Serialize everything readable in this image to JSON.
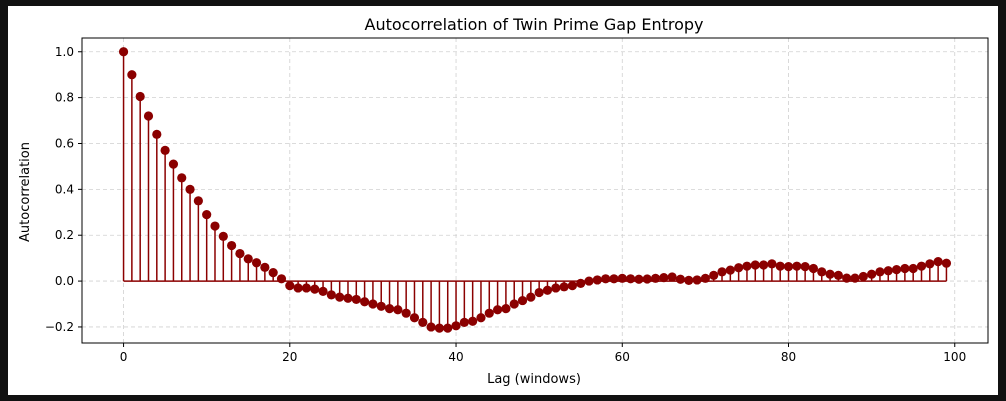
{
  "chart_data": {
    "type": "stem",
    "title": "Autocorrelation of Twin Prime Gap Entropy",
    "xlabel": "Lag (windows)",
    "ylabel": "Autocorrelation",
    "xlim": [
      -5,
      104
    ],
    "ylim": [
      -0.27,
      1.06
    ],
    "xticks": [
      0,
      20,
      40,
      60,
      80,
      100
    ],
    "yticks": [
      -0.2,
      0.0,
      0.2,
      0.4,
      0.6,
      0.8,
      1.0
    ],
    "ytick_labels": [
      "−0.2",
      "0.0",
      "0.2",
      "0.4",
      "0.6",
      "0.8",
      "1.0"
    ],
    "grid": true,
    "colors": {
      "stem": "#8b0000",
      "marker": "#8b0000",
      "grid": "#d0d0d0"
    },
    "x_start": 0,
    "x_step": 1,
    "values": [
      1.0,
      0.9,
      0.805,
      0.72,
      0.64,
      0.57,
      0.51,
      0.45,
      0.4,
      0.35,
      0.29,
      0.24,
      0.195,
      0.155,
      0.12,
      0.097,
      0.08,
      0.06,
      0.037,
      0.01,
      -0.02,
      -0.03,
      -0.03,
      -0.035,
      -0.045,
      -0.06,
      -0.07,
      -0.075,
      -0.08,
      -0.09,
      -0.1,
      -0.11,
      -0.12,
      -0.125,
      -0.14,
      -0.16,
      -0.18,
      -0.2,
      -0.205,
      -0.205,
      -0.195,
      -0.18,
      -0.175,
      -0.16,
      -0.14,
      -0.125,
      -0.12,
      -0.1,
      -0.085,
      -0.07,
      -0.05,
      -0.04,
      -0.03,
      -0.025,
      -0.02,
      -0.01,
      0.0,
      0.005,
      0.01,
      0.01,
      0.012,
      0.01,
      0.008,
      0.009,
      0.012,
      0.015,
      0.018,
      0.008,
      0.003,
      0.005,
      0.012,
      0.025,
      0.04,
      0.048,
      0.058,
      0.065,
      0.07,
      0.07,
      0.075,
      0.065,
      0.063,
      0.065,
      0.063,
      0.055,
      0.04,
      0.03,
      0.025,
      0.013,
      0.013,
      0.02,
      0.03,
      0.04,
      0.045,
      0.05,
      0.055,
      0.055,
      0.065,
      0.075,
      0.085,
      0.078
    ]
  }
}
